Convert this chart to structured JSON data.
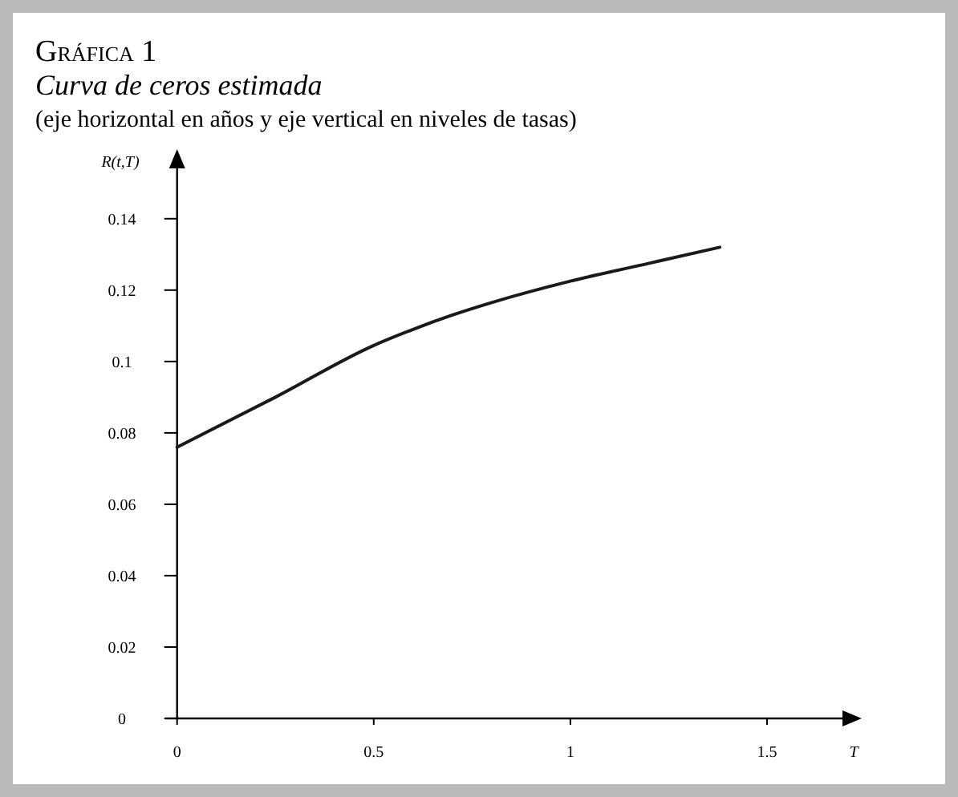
{
  "chart_data": {
    "type": "line",
    "title": "Gráfica 1",
    "subtitle": "Curva de ceros estimada",
    "annotations": [
      "(eje horizontal en años y eje vertical en niveles de tasas)"
    ],
    "xlabel": "T",
    "ylabel": "R(t,T)",
    "x": [
      0,
      0.25,
      0.5,
      0.6,
      0.7,
      0.8,
      1.0,
      1.2,
      1.38
    ],
    "series": [
      {
        "color": "#1a1a1a",
        "values": [
          0.076,
          0.09,
          0.1045,
          0.109,
          0.113,
          0.1165,
          0.1225,
          0.1275,
          0.132
        ]
      }
    ],
    "xlim": [
      -0.03,
      1.7
    ],
    "xticks": [
      0,
      0.5,
      1,
      1.5
    ],
    "ylim": [
      0,
      0.155
    ],
    "yticks": [
      0,
      0.02,
      0.04,
      0.06,
      0.08,
      0.1,
      0.12,
      0.14
    ],
    "grid": false,
    "marker": "none",
    "line_style": "solid"
  }
}
